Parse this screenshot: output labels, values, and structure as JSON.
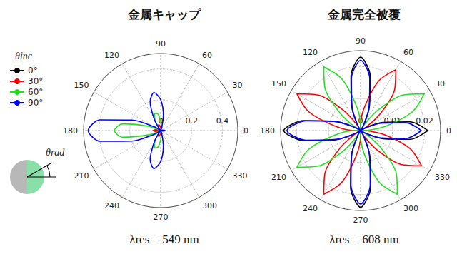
{
  "chart_data": [
    {
      "type": "polar",
      "title": "金属キャップ",
      "caption": "λres = 549 nm",
      "legend": "left",
      "grid": true,
      "xlim": [
        0,
        360
      ],
      "xticks": [
        0,
        30,
        60,
        90,
        120,
        150,
        180,
        210,
        240,
        270,
        300,
        330
      ],
      "ylim": [
        0,
        0.5
      ],
      "yticks": [
        0,
        0.2,
        0.4
      ],
      "x": [
        0,
        10,
        20,
        30,
        40,
        50,
        60,
        70,
        80,
        90,
        100,
        110,
        120,
        130,
        140,
        150,
        160,
        170,
        180,
        190,
        200,
        210,
        220,
        230,
        240,
        250,
        260,
        270,
        280,
        290,
        300,
        310,
        320,
        330,
        340,
        350,
        360
      ],
      "series": [
        {
          "name": "0°",
          "color": "#000000",
          "line_style": "solid",
          "values": [
            0,
            0,
            0,
            0,
            0,
            0,
            0,
            0,
            0.005,
            0.01,
            0.005,
            0,
            0,
            0,
            0,
            0,
            0.01,
            0.03,
            0.04,
            0.03,
            0.01,
            0,
            0,
            0,
            0,
            0,
            0.005,
            0.01,
            0.005,
            0,
            0,
            0,
            0,
            0,
            0,
            0,
            0
          ]
        },
        {
          "name": "30°",
          "color": "#ff0000",
          "line_style": "solid",
          "values": [
            0,
            0,
            0,
            0,
            0,
            0,
            0,
            0,
            0,
            0.01,
            0.03,
            0.04,
            0.03,
            0.01,
            0,
            0,
            0.01,
            0.03,
            0.05,
            0.03,
            0.01,
            0,
            0,
            0.01,
            0.03,
            0.04,
            0.03,
            0.01,
            0,
            0,
            0,
            0,
            0,
            0,
            0,
            0,
            0
          ]
        },
        {
          "name": "60°",
          "color": "#22e022",
          "line_style": "solid",
          "values": [
            0.01,
            0.005,
            0,
            0,
            0,
            0,
            0,
            0,
            0.02,
            0.06,
            0.11,
            0.12,
            0.07,
            0.01,
            0,
            0,
            0.08,
            0.25,
            0.3,
            0.25,
            0.08,
            0,
            0,
            0.01,
            0.07,
            0.12,
            0.11,
            0.06,
            0.02,
            0,
            0,
            0,
            0,
            0,
            0,
            0.005,
            0.01
          ]
        },
        {
          "name": "90°",
          "color": "#0000ff",
          "line_style": "solid",
          "values": [
            0.03,
            0.02,
            0,
            0,
            0,
            0,
            0,
            0.02,
            0.1,
            0.2,
            0.25,
            0.2,
            0.08,
            0.01,
            0,
            0.05,
            0.2,
            0.4,
            0.47,
            0.4,
            0.2,
            0.05,
            0,
            0.01,
            0.08,
            0.2,
            0.25,
            0.2,
            0.1,
            0.02,
            0,
            0,
            0,
            0,
            0,
            0.02,
            0.03
          ]
        }
      ]
    },
    {
      "type": "polar",
      "title": "金属完全被覆",
      "caption": "λres = 608 nm",
      "grid": true,
      "xlim": [
        0,
        360
      ],
      "xticks": [
        0,
        30,
        60,
        90,
        120,
        150,
        180,
        210,
        240,
        270,
        300,
        330
      ],
      "ylim": [
        0,
        0.025
      ],
      "yticks": [
        0,
        0.01,
        0.02
      ],
      "x": [
        0,
        10,
        20,
        30,
        40,
        50,
        60,
        70,
        80,
        90,
        100,
        110,
        120,
        130,
        140,
        150,
        160,
        170,
        180,
        190,
        200,
        210,
        220,
        230,
        240,
        250,
        260,
        270,
        280,
        290,
        300,
        310,
        320,
        330,
        340,
        350,
        360
      ],
      "series": [
        {
          "name": "0°",
          "color": "#000000",
          "line_style": "solid",
          "values": [
            0.021,
            0.0158,
            0.0074,
            0.0017,
            0,
            0,
            0.0018,
            0.0081,
            0.0173,
            0.023,
            0.0173,
            0.0081,
            0.0018,
            0,
            0,
            0.0019,
            0.0084,
            0.018,
            0.024,
            0.018,
            0.0084,
            0.0019,
            0,
            0,
            0.0019,
            0.0084,
            0.018,
            0.024,
            0.018,
            0.0084,
            0.0019,
            0,
            0,
            0.0017,
            0.0074,
            0.0158,
            0.021
          ]
        },
        {
          "name": "30°",
          "color": "#ff0000",
          "line_style": "solid",
          "values": [
            0.0018,
            0,
            0,
            0.0018,
            0.0077,
            0.0165,
            0.022,
            0.0165,
            0.0077,
            0.0018,
            0,
            0,
            0.0018,
            0.0081,
            0.0173,
            0.023,
            0.0173,
            0.0081,
            0.0018,
            0,
            0,
            0.0018,
            0.0081,
            0.0173,
            0.023,
            0.0173,
            0.0081,
            0.0018,
            0,
            0,
            0.0018,
            0.0077,
            0.0165,
            0.022,
            0.0165,
            0.0077,
            0.0018
          ]
        },
        {
          "name": "60°",
          "color": "#22e022",
          "line_style": "solid",
          "values": [
            0.0018,
            0.0081,
            0.0173,
            0.023,
            0.0173,
            0.0081,
            0.0018,
            0,
            0,
            0.0018,
            0.0081,
            0.0173,
            0.023,
            0.0173,
            0.0081,
            0.0018,
            0,
            0,
            0.0018,
            0.0081,
            0.0173,
            0.023,
            0.0173,
            0.0081,
            0.0018,
            0,
            0,
            0.0018,
            0.0081,
            0.0173,
            0.023,
            0.0173,
            0.0081,
            0.0018,
            0,
            0,
            0.0018
          ]
        },
        {
          "name": "90°",
          "color": "#0000ff",
          "line_style": "solid",
          "values": [
            0.019,
            0.0143,
            0.0067,
            0.0015,
            0,
            0,
            0.0018,
            0.0077,
            0.0165,
            0.022,
            0.0165,
            0.0077,
            0.0018,
            0,
            0,
            0.0018,
            0.0081,
            0.0173,
            0.023,
            0.0173,
            0.0081,
            0.0018,
            0,
            0,
            0.0018,
            0.0081,
            0.0173,
            0.023,
            0.0173,
            0.0081,
            0.0018,
            0,
            0,
            0.0015,
            0.0067,
            0.0143,
            0.019
          ]
        }
      ]
    }
  ],
  "legend_title": "θinc",
  "diagram_label": "θrad"
}
